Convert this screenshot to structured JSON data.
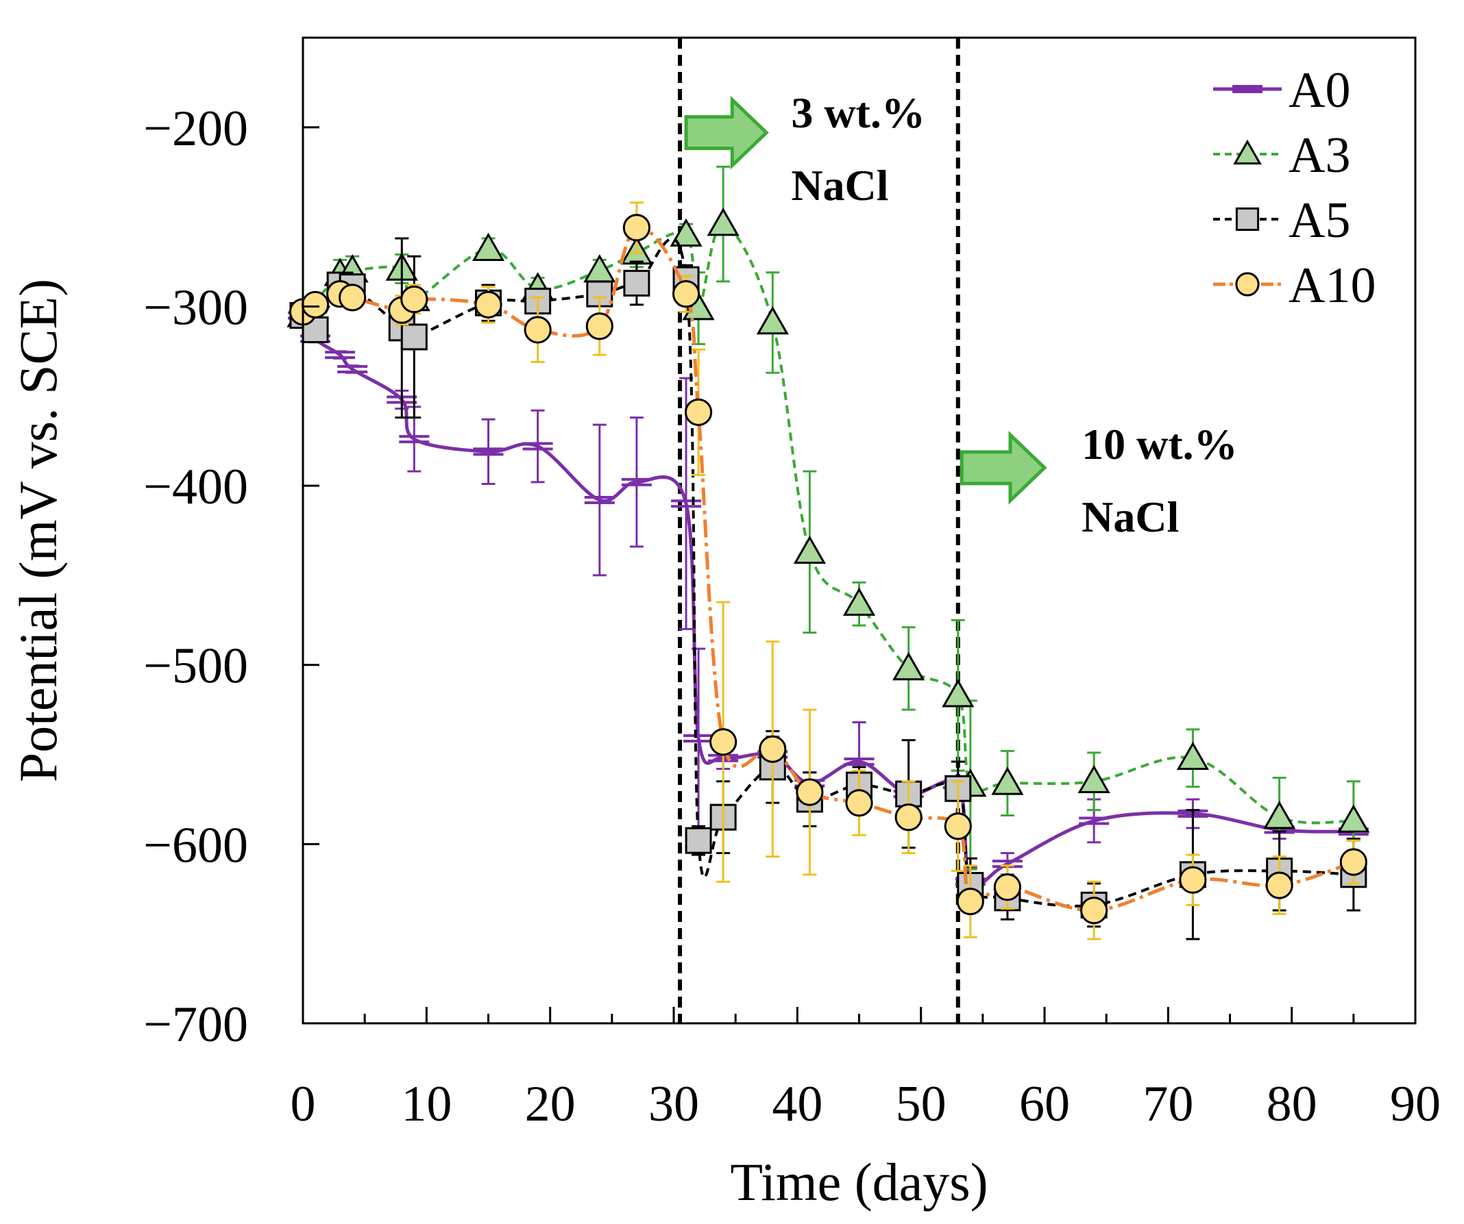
{
  "chart_data": {
    "type": "line",
    "xlabel": "Time (days)",
    "ylabel": "Potential (mV vs. SCE)",
    "xlim": [
      0,
      90
    ],
    "ylim": [
      -700,
      -150
    ],
    "xticks": [
      0,
      10,
      20,
      30,
      40,
      50,
      60,
      70,
      80,
      90
    ],
    "yticks": [
      -700,
      -600,
      -500,
      -400,
      -300,
      -200
    ],
    "ytick_labels": [
      "−700",
      "−600",
      "−500",
      "−400",
      "−300",
      "−200"
    ],
    "grid": false,
    "legend_position": "top-right",
    "stage_lines_x": [
      30.5,
      53
    ],
    "annotations": [
      {
        "lines": [
          "3 wt.%",
          "NaCl"
        ],
        "x": 39.5,
        "y": -200,
        "arrow_x": [
          31,
          37.5
        ],
        "arrow_y": -203
      },
      {
        "lines": [
          "10 wt.%",
          "NaCl"
        ],
        "x": 63,
        "y": -385,
        "arrow_x": [
          53.3,
          60
        ],
        "arrow_y": -390
      }
    ],
    "series": [
      {
        "name": "A0",
        "color": "#7b2fa8",
        "marker": "dash",
        "dash": "",
        "x": [
          0,
          1,
          3,
          4,
          8,
          9,
          15,
          19,
          24,
          27,
          31,
          32,
          34,
          38,
          41,
          45,
          49,
          53,
          54,
          57,
          64,
          72,
          79,
          85
        ],
        "y": [
          -305,
          -318,
          -327,
          -335,
          -352,
          -374,
          -381,
          -378,
          -408,
          -398,
          -410,
          -541,
          -552,
          -550,
          -566,
          -554,
          -572,
          -567,
          -621,
          -611,
          -587,
          -583,
          -592,
          -593
        ],
        "err": [
          2,
          2,
          2,
          2,
          5,
          18,
          18,
          20,
          42,
          36,
          70,
          50,
          6,
          10,
          6,
          22,
          6,
          8,
          8,
          6,
          12,
          8,
          5,
          5
        ]
      },
      {
        "name": "A3",
        "color": "#3aaa35",
        "fill": "#a8d89a",
        "marker": "triangle",
        "dash": "12 8",
        "x": [
          0,
          3,
          4,
          8,
          9,
          15,
          19,
          24,
          27,
          31,
          32,
          34,
          38,
          41,
          45,
          49,
          53,
          54,
          57,
          64,
          72,
          79,
          85
        ],
        "y": [
          -305,
          -282,
          -280,
          -279,
          -296,
          -268,
          -290,
          -280,
          -270,
          -260,
          -301,
          -254,
          -309,
          -437,
          -466,
          -502,
          -517,
          -567,
          -566,
          -565,
          -552,
          -585,
          -587
        ],
        "err": [
          3,
          8,
          8,
          8,
          4,
          6,
          6,
          6,
          8,
          6,
          20,
          32,
          28,
          45,
          12,
          23,
          42,
          47,
          18,
          16,
          16,
          22,
          22
        ]
      },
      {
        "name": "A5",
        "color": "#000000",
        "fill": "#c8c8c8",
        "marker": "square",
        "dash": "12 8",
        "x": [
          0,
          1,
          3,
          4,
          8,
          9,
          15,
          19,
          24,
          27,
          31,
          32,
          34,
          38,
          41,
          45,
          49,
          53,
          54,
          57,
          64,
          72,
          79,
          85
        ],
        "y": [
          -305,
          -313,
          -288,
          -289,
          -312,
          -317,
          -298,
          -297,
          -293,
          -287,
          -285,
          -598,
          -585,
          -557,
          -575,
          -567,
          -572,
          -569,
          -623,
          -630,
          -634,
          -617,
          -615,
          -617
        ],
        "err": [
          3,
          4,
          5,
          5,
          50,
          45,
          10,
          6,
          6,
          12,
          8,
          8,
          20,
          20,
          15,
          10,
          30,
          15,
          15,
          12,
          12,
          36,
          22,
          20
        ]
      },
      {
        "name": "A10",
        "color": "#f08030",
        "fill": "#ffe08a",
        "errcolor": "#f0c020",
        "marker": "circle",
        "dash": "26 8 5 8",
        "x": [
          0,
          1,
          3,
          4,
          8,
          9,
          15,
          19,
          24,
          27,
          31,
          32,
          34,
          38,
          41,
          45,
          49,
          53,
          54,
          57,
          64,
          72,
          79,
          85
        ],
        "y": [
          -303,
          -299,
          -293,
          -295,
          -302,
          -296,
          -299,
          -313,
          -311,
          -256,
          -293,
          -359,
          -543,
          -547,
          -571,
          -577,
          -585,
          -590,
          -632,
          -624,
          -637,
          -620,
          -623,
          -610
        ],
        "err": [
          3,
          3,
          4,
          4,
          8,
          8,
          10,
          18,
          16,
          14,
          10,
          35,
          78,
          60,
          46,
          18,
          20,
          25,
          20,
          12,
          16,
          14,
          16,
          12
        ]
      }
    ]
  }
}
